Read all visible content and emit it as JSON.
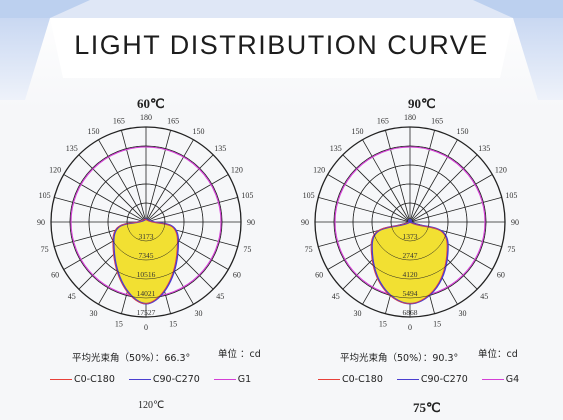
{
  "header": {
    "title": "LIGHT DISTRIBUTION CURVE"
  },
  "colors": {
    "c0_c180": "#e8413a",
    "c90_c270": "#4a3fd0",
    "g_series": "#d43fd6",
    "fill": "#f2e032",
    "grid": "#222222",
    "banner_light": "#e9eef8",
    "banner_blue": "#a8c2ea"
  },
  "charts": [
    {
      "id": "chart-60",
      "temperature": "60℃",
      "angle_labels": [
        "180",
        "165",
        "165",
        "150",
        "150",
        "135",
        "135",
        "120",
        "120",
        "105",
        "105",
        "90",
        "90",
        "75",
        "75",
        "60",
        "60",
        "45",
        "45",
        "30",
        "30",
        "15",
        "15",
        "0"
      ],
      "radial_labels": [
        "3173",
        "7345",
        "10516",
        "14021",
        "17527"
      ],
      "beam_angle_label": "平均光束角（50%）：66.3°",
      "unit_label": "单位  ：cd",
      "legend": [
        {
          "name": "C0-C180",
          "color_key": "c0_c180"
        },
        {
          "name": "C90-C270",
          "color_key": "c90_c270"
        },
        {
          "name": "G1",
          "color_key": "g_series"
        }
      ]
    },
    {
      "id": "chart-90",
      "temperature": "90℃",
      "angle_labels": [
        "180",
        "165",
        "165",
        "150",
        "150",
        "135",
        "135",
        "120",
        "120",
        "105",
        "105",
        "90",
        "90",
        "75",
        "75",
        "60",
        "60",
        "45",
        "45",
        "30",
        "30",
        "15",
        "15",
        "0"
      ],
      "radial_labels": [
        "1373",
        "2747",
        "4120",
        "5494",
        "6868"
      ],
      "beam_angle_label": "平均光束角（50%）：90.3°",
      "unit_label": "单位：cd",
      "legend": [
        {
          "name": "C0-C180",
          "color_key": "c0_c180"
        },
        {
          "name": "C90-C270",
          "color_key": "c90_c270"
        },
        {
          "name": "G4",
          "color_key": "g_series"
        }
      ]
    }
  ],
  "bottom_labels": {
    "left": "120℃",
    "right": "75℃"
  }
}
